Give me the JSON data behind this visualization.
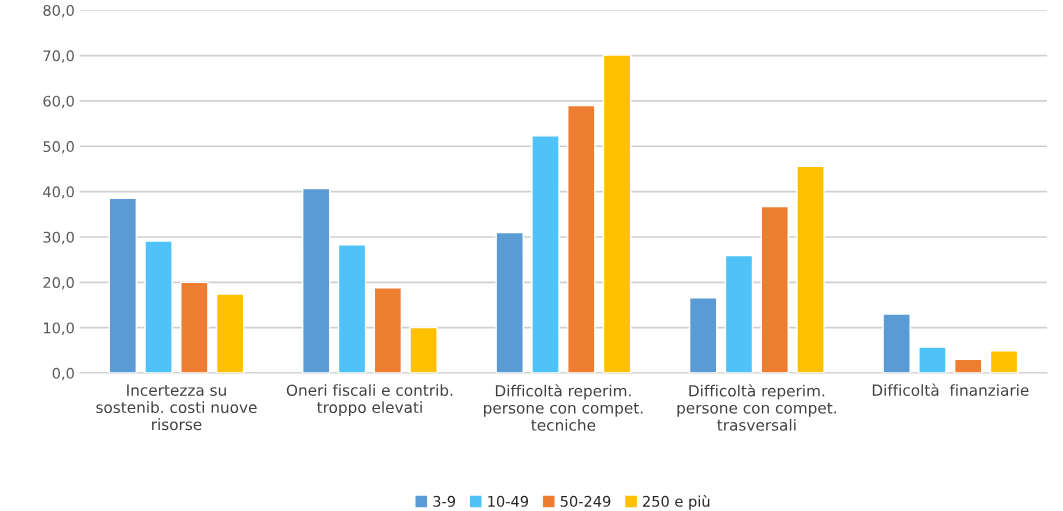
{
  "chart_data": {
    "type": "bar",
    "categories": [
      "Incertezza su\nsostenib. costi nuove\nrisorse",
      "Oneri fiscali e contrib.\ntroppo elevati",
      "Difficoltà reperim.\npersone con compet.\ntecniche",
      "Difficoltà reperim.\npersone con compet.\ntrasversali",
      "Difficoltà  finanziarie"
    ],
    "series": [
      {
        "name": "3-9",
        "color": "#5b9bd5",
        "values": [
          38.5,
          40.7,
          31.0,
          16.6,
          13.0
        ]
      },
      {
        "name": "10-49",
        "color": "#4fc3f7",
        "values": [
          29.1,
          28.3,
          52.3,
          25.9,
          5.7
        ]
      },
      {
        "name": "50-249",
        "color": "#ed7d31",
        "values": [
          20.0,
          18.8,
          59.0,
          36.7,
          3.0
        ]
      },
      {
        "name": "250 e più",
        "color": "#ffc000",
        "values": [
          17.4,
          10.0,
          70.1,
          45.6,
          4.9
        ]
      }
    ],
    "ylim": [
      0,
      80
    ],
    "yticks": [
      {
        "value": 0,
        "label": "0,0"
      },
      {
        "value": 10,
        "label": "10,0"
      },
      {
        "value": 20,
        "label": "20,0"
      },
      {
        "value": 30,
        "label": "30,0"
      },
      {
        "value": 40,
        "label": "40,0"
      },
      {
        "value": 50,
        "label": "50,0"
      },
      {
        "value": 60,
        "label": "60,0"
      },
      {
        "value": 70,
        "label": "70,0"
      },
      {
        "value": 80,
        "label": "80,0"
      }
    ],
    "grid": "y",
    "legend": "bottom"
  }
}
